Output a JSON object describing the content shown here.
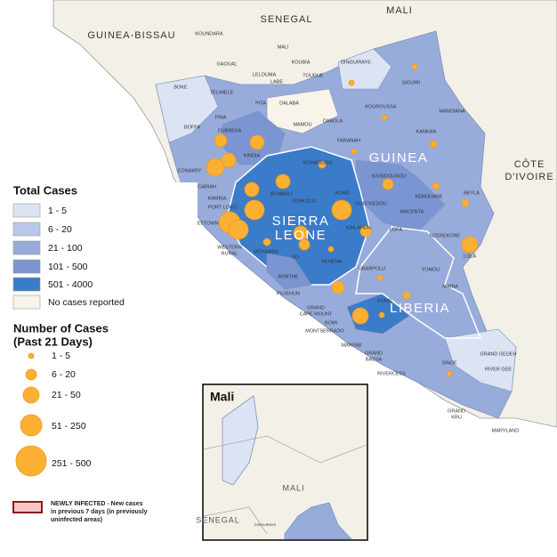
{
  "countries": [
    "SENEGAL",
    "MALI",
    "GUINEA-BISSAU",
    "GUINEA",
    [
      "SIERRA",
      "LEONE"
    ],
    "LIBERIA",
    [
      "CÔTE",
      "D'IVOIRE"
    ]
  ],
  "districts": [
    "KOUNDARA",
    "MALI",
    "KOUBIA",
    "LELOUMA",
    "LABE",
    "TOUGUE",
    "GAOUAL",
    "DINGUIRAYE",
    "SIGUIRI",
    "BOKE",
    "TELIMELE",
    "PITA",
    "DALABA",
    "MAMOU",
    "DABOLA",
    "KOUROUSSA",
    "MANDIANA",
    "BOFFA",
    "FRIA",
    "DUBREKA",
    "KINDIA",
    "FARANAH",
    "KANKAN",
    "CONAKRY",
    "FORECARIAH",
    "KAMBIA",
    "PORT LOKO",
    "KOINADUGU",
    "BOMBALI",
    "TONKOLILI",
    "KONO",
    "KISSIDOUGOU",
    "KEROUANE",
    "GUECKEDOU",
    "MACENTA",
    "BEYLA",
    "FREETOWN",
    "WESTERN",
    "RURAL",
    "KAILAHUN",
    "MOYAMBA",
    "BO",
    "KENEMA",
    "LOFA",
    "NZEREKORE",
    "LOLA",
    "BONTHE",
    "PUJEHUN",
    "GBARPOLU",
    "YOMOU",
    "BONG",
    "NIMBA",
    "GRAND",
    "CAPE MOUNT",
    "BOMI",
    "MONTSERRADO",
    "MARGIBI",
    "GRAND",
    "BASSA",
    "GRAND GEDEH",
    "RIVER GEE",
    "SINOE",
    "RIVERCESS",
    "GRAND",
    "KRU",
    "MARYLAND"
  ],
  "legend_total": {
    "title": "Total Cases",
    "items": [
      "1 - 5",
      "6 - 20",
      "21 - 100",
      "101 - 500",
      "501 - 4000",
      "No cases reported"
    ]
  },
  "legend_number": {
    "title": [
      "Number of Cases",
      "(Past 21 Days)"
    ],
    "items": [
      "1 - 5",
      "6 - 20",
      "21 - 50",
      "51 - 250",
      "251 - 500"
    ]
  },
  "newly_infected": [
    "NEWLY INFECTED - New cases",
    "in previous 7 days (in previously",
    "uninfected areas)"
  ],
  "inset": {
    "title": "Mali",
    "labels": [
      "MALI",
      "SENEGAL",
      "DINGUIRAYE"
    ]
  }
}
